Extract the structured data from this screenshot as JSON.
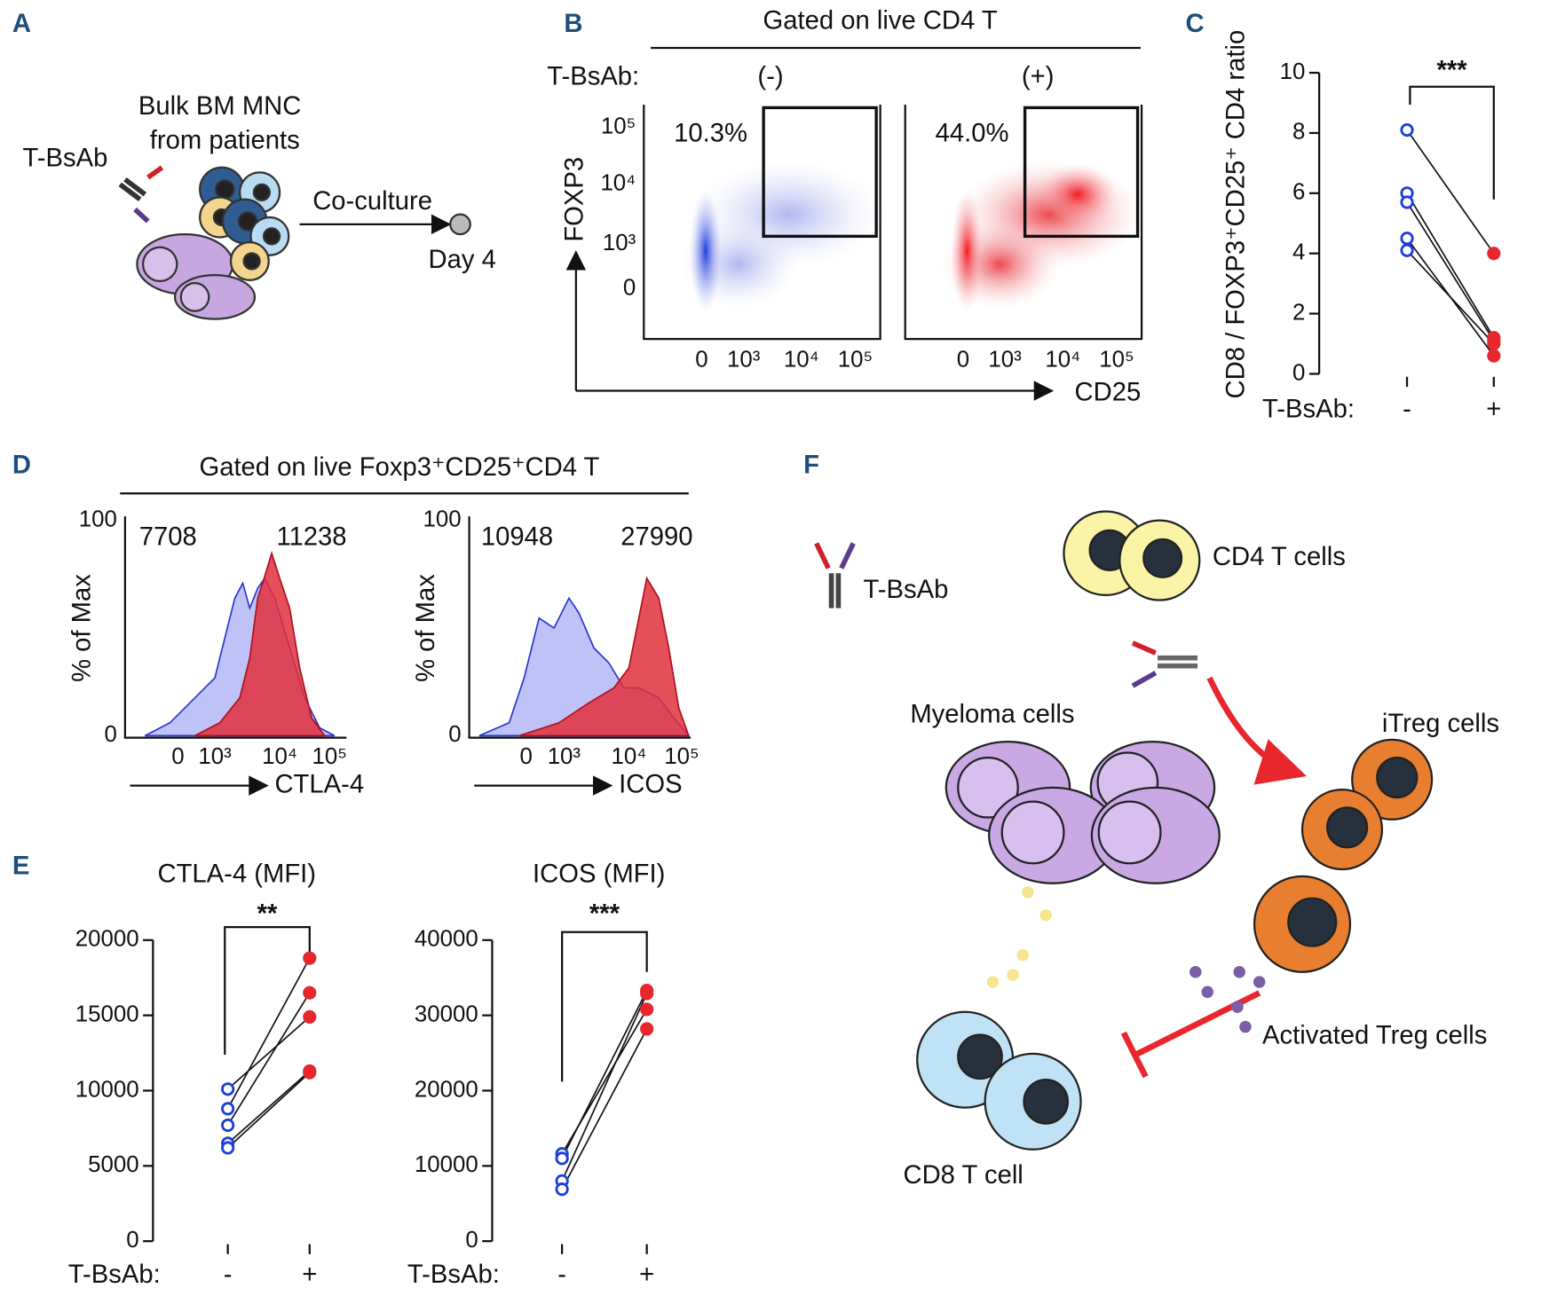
{
  "panel_labels": {
    "a": "A",
    "b": "B",
    "c": "C",
    "d": "D",
    "e": "E",
    "f": "F"
  },
  "panel_a": {
    "antibody": "T-BsAb",
    "source": [
      "Bulk BM MNC",
      "from patients"
    ],
    "step": "Co-culture",
    "endpoint": "Day 4"
  },
  "panel_b": {
    "gate": "Gated on live CD4 T",
    "treatment_label": "T-BsAb:",
    "plots": [
      {
        "condition": "(-)",
        "gate_percent": "10.3%"
      },
      {
        "condition": "(+)",
        "gate_percent": "44.0%"
      }
    ],
    "y_axis": "FOXP3",
    "x_axis": "CD25",
    "yticks": [
      "10⁵",
      "10⁴",
      "10³",
      "0"
    ],
    "xticks": [
      "0",
      "10³",
      "10⁴",
      "10⁵"
    ]
  },
  "panel_d": {
    "gate": "Gated on  live Foxp3⁺CD25⁺CD4 T",
    "y_axis": "% of Max",
    "yticks": [
      "100",
      "0"
    ],
    "xticks": [
      "0",
      "10³",
      "10⁴",
      "10⁵"
    ],
    "plots": [
      {
        "marker": "CTLA-4",
        "mfi": [
          7708,
          11238
        ]
      },
      {
        "marker": "ICOS",
        "mfi": [
          10948,
          27990
        ]
      }
    ]
  },
  "panel_f": {
    "antibody": "T-BsAb",
    "cd4": "CD4 T cells",
    "myeloma": "Myeloma cells",
    "itreg": "iTreg cells",
    "treg": "Activated Treg cells",
    "cd8": "CD8 T cell"
  },
  "chart_data": [
    {
      "type": "line",
      "ylabel": "CD8 / FOXP3⁺CD25⁺ CD4 ratio",
      "group_label": "T-BsAb:",
      "categories": [
        "-",
        "+"
      ],
      "colors": [
        "#1a3fd8",
        "#e8262e"
      ],
      "significance": "***",
      "ylim": [
        0,
        10
      ],
      "yticks": [
        0,
        2,
        4,
        6,
        8,
        10
      ],
      "series": [
        {
          "values": [
            8.1,
            4.0
          ]
        },
        {
          "values": [
            6.0,
            1.2
          ]
        },
        {
          "values": [
            5.7,
            1.1
          ]
        },
        {
          "values": [
            4.5,
            0.6
          ]
        },
        {
          "values": [
            4.1,
            1.0
          ]
        }
      ]
    },
    {
      "type": "line",
      "title": "CTLA-4 (MFI)",
      "group_label": "T-BsAb:",
      "categories": [
        "-",
        "+"
      ],
      "colors": [
        "#1a3fd8",
        "#e8262e"
      ],
      "significance": "**",
      "ylim": [
        0,
        20000
      ],
      "yticks": [
        0,
        5000,
        10000,
        15000,
        20000
      ],
      "series": [
        {
          "values": [
            10100,
            14900
          ]
        },
        {
          "values": [
            8800,
            18800
          ]
        },
        {
          "values": [
            7700,
            16500
          ]
        },
        {
          "values": [
            6500,
            11300
          ]
        },
        {
          "values": [
            6200,
            11200
          ]
        }
      ]
    },
    {
      "type": "line",
      "title": "ICOS (MFI)",
      "group_label": "T-BsAb:",
      "categories": [
        "-",
        "+"
      ],
      "colors": [
        "#1a3fd8",
        "#e8262e"
      ],
      "significance": "***",
      "ylim": [
        0,
        40000
      ],
      "yticks": [
        0,
        10000,
        20000,
        30000,
        40000
      ],
      "series": [
        {
          "values": [
            11600,
            30800
          ]
        },
        {
          "values": [
            11000,
            33300
          ]
        },
        {
          "values": [
            8000,
            32900
          ]
        },
        {
          "values": [
            6900,
            28200
          ]
        }
      ]
    }
  ]
}
